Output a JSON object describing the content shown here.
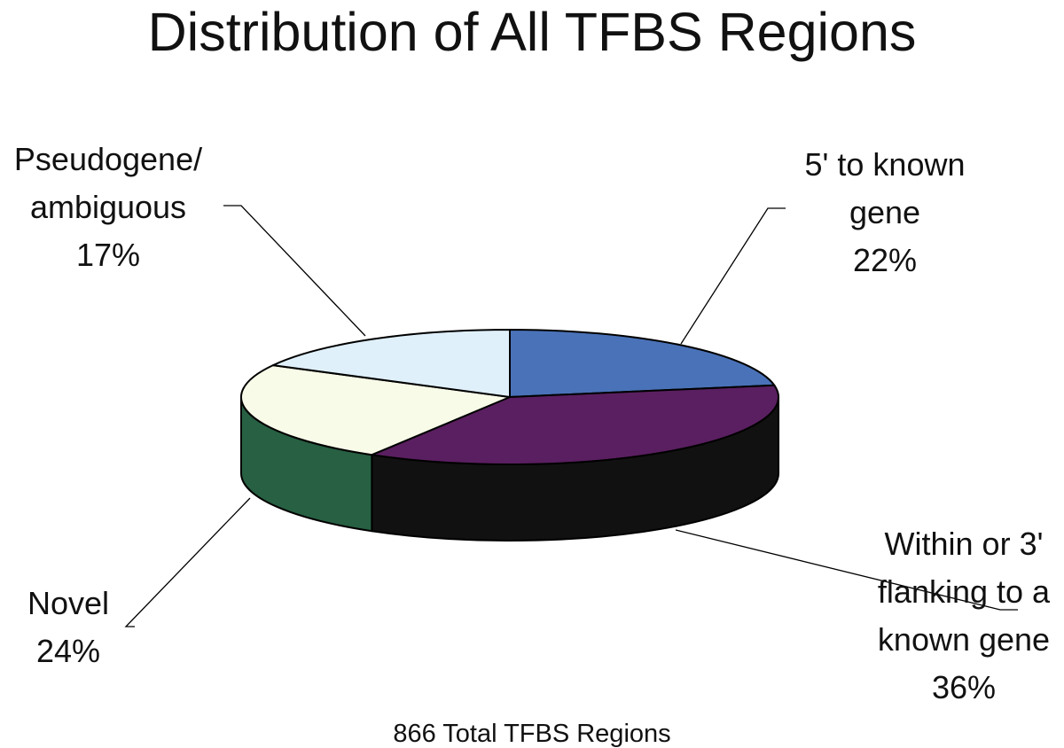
{
  "chart_data": {
    "type": "pie",
    "title": "Distribution of All TFBS Regions",
    "caption": "866 Total TFBS Regions",
    "slices": [
      {
        "name": "5' to known gene",
        "label_lines": [
          "5' to known",
          "gene"
        ],
        "percent_label": "22%",
        "value": 22,
        "top_color": "#4a72b8",
        "side_color": "#2e4a80"
      },
      {
        "name": "Within or 3' flanking to a known gene",
        "label_lines": [
          "Within or 3'",
          "flanking to a",
          "known gene"
        ],
        "percent_label": "36%",
        "value": 36,
        "top_color": "#5a1f60",
        "side_color": "#111111"
      },
      {
        "name": "Novel",
        "label_lines": [
          "Novel"
        ],
        "percent_label": "24%",
        "value": 24,
        "top_color": "#f8fbe8",
        "side_color": "#276042"
      },
      {
        "name": "Pseudogene/ ambiguous",
        "label_lines": [
          "Pseudogene/",
          "ambiguous"
        ],
        "percent_label": "17%",
        "value": 17,
        "top_color": "#dff0fb",
        "side_color": "#b9cfe0"
      }
    ]
  }
}
